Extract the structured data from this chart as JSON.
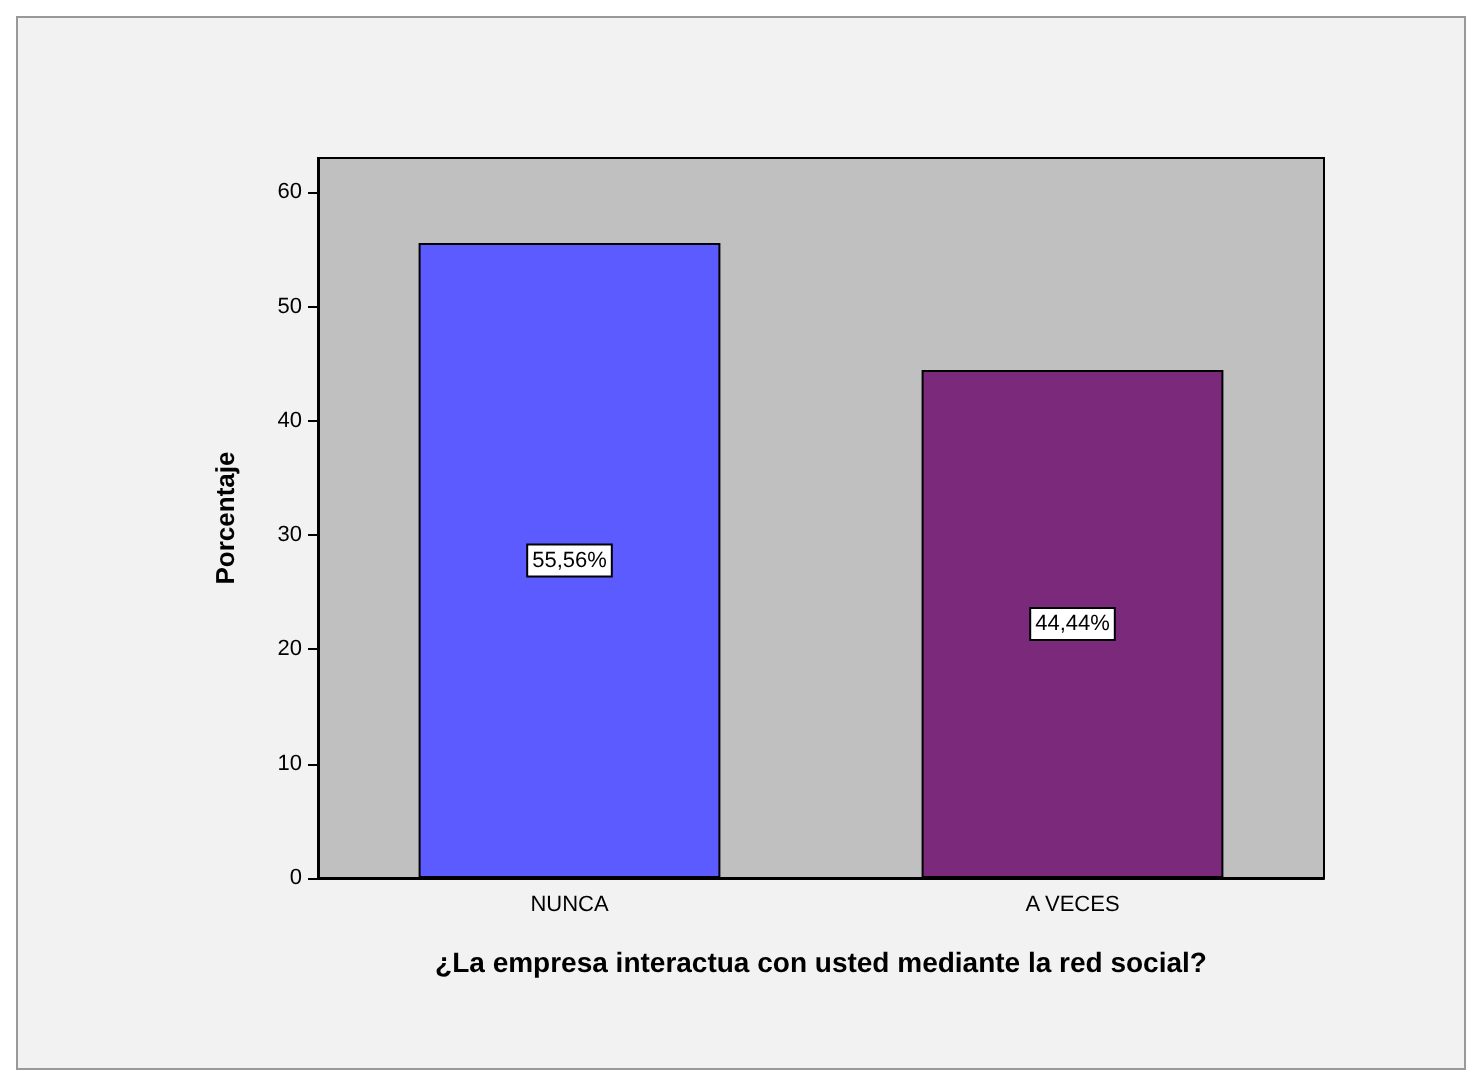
{
  "chart_data": {
    "type": "bar",
    "ylabel": "Porcentaje",
    "xlabel": "¿La empresa interactua con usted mediante la red social?",
    "categories": [
      "NUNCA",
      "A VECES"
    ],
    "values": [
      55.56,
      44.44
    ],
    "value_labels": [
      "55,56%",
      "44,44%"
    ],
    "colors": [
      "#5b5bff",
      "#7b2a7b"
    ],
    "ylim": [
      0,
      63
    ],
    "yticks": [
      0,
      10,
      20,
      30,
      40,
      50,
      60
    ],
    "grid": false
  }
}
